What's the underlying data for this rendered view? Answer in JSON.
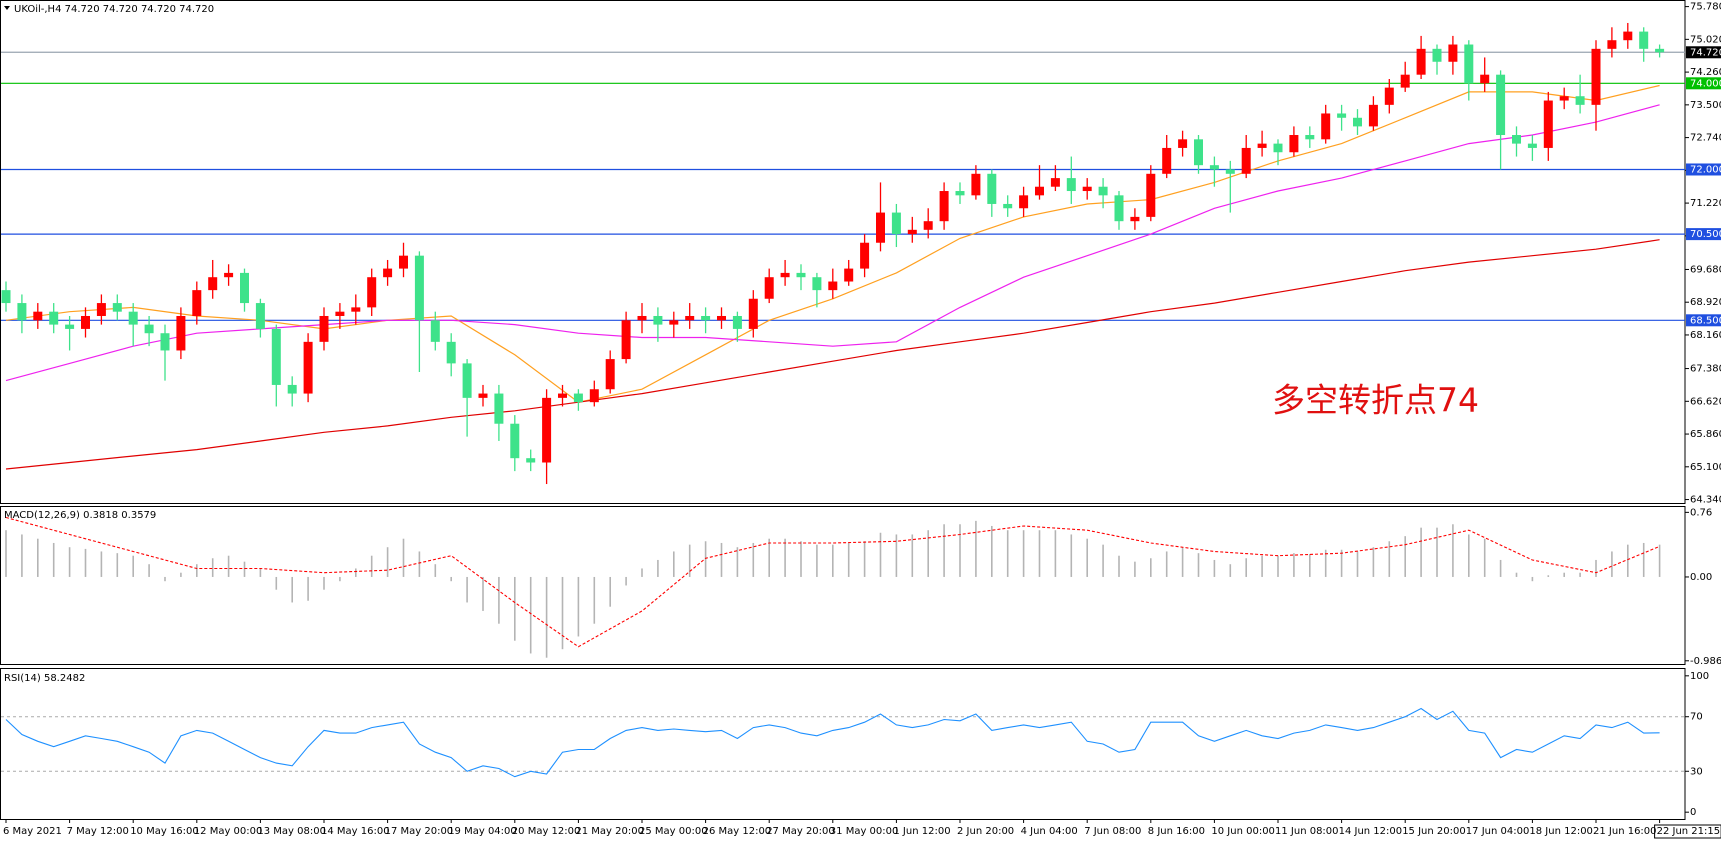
{
  "chart_data": [
    {
      "type": "candlestick",
      "title": "UKOil-,H4  74.720 74.720 74.720 74.720",
      "annotation": "多空转折点74",
      "categories": [
        "6 May 2021",
        null,
        null,
        null,
        "7 May 12:00",
        null,
        null,
        null,
        "10 May 16:00",
        null,
        null,
        null,
        "12 May 00:00",
        null,
        null,
        null,
        "13 May 08:00",
        null,
        null,
        null,
        "14 May 16:00",
        null,
        null,
        null,
        "17 May 20:00",
        null,
        null,
        null,
        "19 May 04:00",
        null,
        null,
        null,
        "20 May 12:00",
        null,
        null,
        null,
        "21 May 20:00",
        null,
        null,
        null,
        "25 May 00:00",
        null,
        null,
        null,
        "26 May 12:00",
        null,
        null,
        null,
        "27 May 20:00",
        null,
        null,
        null,
        "31 May 00:00",
        null,
        null,
        null,
        "1 Jun 12:00",
        null,
        null,
        null,
        "2 Jun 20:00",
        null,
        null,
        null,
        "4 Jun 04:00",
        null,
        null,
        null,
        "7 Jun 08:00",
        null,
        null,
        null,
        "8 Jun 16:00",
        null,
        null,
        null,
        "10 Jun 00:00",
        null,
        null,
        null,
        "11 Jun 08:00",
        null,
        null,
        null,
        "14 Jun 12:00",
        null,
        null,
        null,
        "15 Jun 20:00",
        null,
        null,
        null,
        "17 Jun 04:00",
        null,
        null,
        null,
        "18 Jun 12:00",
        null,
        null,
        null,
        "21 Jun 16:00",
        null,
        null,
        null,
        "22 Jun 21:15"
      ],
      "open": [
        69.2,
        68.9,
        68.5,
        68.7,
        68.4,
        68.3,
        68.6,
        68.9,
        68.7,
        68.4,
        68.2,
        67.8,
        68.6,
        69.2,
        69.5,
        69.6,
        68.9,
        68.3,
        67.0,
        66.8,
        68.0,
        68.6,
        68.7,
        68.8,
        69.5,
        69.7,
        70.0,
        68.5,
        68.0,
        67.5,
        66.7,
        66.8,
        66.1,
        65.3,
        65.2,
        66.7,
        66.8,
        66.6,
        66.9,
        67.6,
        68.5,
        68.6,
        68.4,
        68.5,
        68.6,
        68.5,
        68.6,
        68.3,
        69.0,
        69.5,
        69.6,
        69.5,
        69.2,
        69.4,
        69.7,
        70.3,
        71.0,
        70.5,
        70.6,
        70.8,
        71.5,
        71.4,
        71.9,
        71.2,
        71.1,
        71.4,
        71.6,
        71.8,
        71.5,
        71.6,
        71.4,
        70.8,
        70.9,
        71.9,
        72.5,
        72.7,
        72.1,
        72.0,
        71.9,
        72.5,
        72.6,
        72.4,
        72.8,
        72.7,
        73.3,
        73.2,
        73.0,
        73.5,
        73.9,
        74.2,
        74.8,
        74.5,
        74.9,
        74.0,
        74.2,
        72.8,
        72.6,
        72.5,
        73.6,
        73.7,
        73.5,
        74.8,
        75.0,
        75.2,
        74.8
      ],
      "close": [
        68.9,
        68.5,
        68.7,
        68.4,
        68.3,
        68.6,
        68.9,
        68.7,
        68.4,
        68.2,
        67.8,
        68.6,
        69.2,
        69.5,
        69.6,
        68.9,
        68.3,
        67.0,
        66.8,
        68.0,
        68.6,
        68.7,
        68.8,
        69.5,
        69.7,
        70.0,
        68.5,
        68.0,
        67.5,
        66.7,
        66.8,
        66.1,
        65.3,
        65.2,
        66.7,
        66.8,
        66.6,
        66.9,
        67.6,
        68.5,
        68.6,
        68.4,
        68.5,
        68.6,
        68.5,
        68.6,
        68.3,
        69.0,
        69.5,
        69.6,
        69.5,
        69.2,
        69.4,
        69.7,
        70.3,
        71.0,
        70.5,
        70.6,
        70.8,
        71.5,
        71.4,
        71.9,
        71.2,
        71.1,
        71.4,
        71.6,
        71.8,
        71.5,
        71.6,
        71.4,
        70.8,
        70.9,
        71.9,
        72.5,
        72.7,
        72.1,
        72.0,
        71.9,
        72.5,
        72.6,
        72.4,
        72.8,
        72.7,
        73.3,
        73.2,
        73.0,
        73.5,
        73.9,
        74.2,
        74.8,
        74.5,
        74.9,
        74.0,
        74.2,
        72.8,
        72.6,
        72.5,
        73.6,
        73.7,
        73.5,
        74.8,
        75.0,
        75.2,
        74.8,
        74.72
      ],
      "high": [
        69.4,
        69.1,
        68.9,
        68.9,
        68.6,
        68.8,
        69.1,
        69.1,
        68.9,
        68.6,
        68.4,
        68.8,
        69.4,
        69.9,
        69.8,
        69.7,
        69.0,
        68.4,
        67.2,
        68.2,
        68.8,
        68.9,
        69.1,
        69.7,
        69.9,
        70.3,
        70.1,
        68.7,
        68.2,
        67.6,
        67.0,
        67.0,
        66.3,
        65.5,
        66.9,
        67.0,
        66.9,
        67.1,
        67.8,
        68.7,
        68.9,
        68.8,
        68.7,
        68.9,
        68.8,
        68.8,
        68.7,
        69.2,
        69.7,
        69.9,
        69.8,
        69.6,
        69.7,
        69.9,
        70.5,
        71.7,
        71.2,
        70.9,
        71.1,
        71.7,
        71.7,
        72.1,
        72.0,
        71.4,
        71.6,
        72.1,
        72.1,
        72.3,
        71.8,
        71.8,
        71.5,
        71.1,
        72.1,
        72.8,
        72.9,
        72.8,
        72.3,
        72.2,
        72.8,
        72.9,
        72.7,
        73.0,
        73.0,
        73.5,
        73.5,
        73.4,
        73.7,
        74.1,
        74.5,
        75.1,
        74.9,
        75.1,
        75.0,
        74.6,
        74.3,
        73.0,
        72.8,
        73.8,
        73.9,
        74.2,
        75.0,
        75.3,
        75.4,
        75.3,
        74.9
      ],
      "low": [
        68.7,
        68.2,
        68.3,
        68.2,
        67.8,
        68.1,
        68.4,
        68.5,
        67.9,
        67.9,
        67.1,
        67.6,
        68.4,
        69.0,
        69.3,
        68.7,
        68.1,
        66.5,
        66.5,
        66.6,
        67.8,
        68.3,
        68.4,
        68.6,
        69.3,
        69.5,
        67.3,
        67.8,
        67.2,
        65.8,
        66.5,
        65.7,
        65.0,
        65.0,
        64.7,
        66.5,
        66.4,
        66.5,
        66.8,
        67.5,
        68.2,
        68.0,
        68.1,
        68.3,
        68.2,
        68.3,
        68.0,
        68.1,
        68.9,
        69.3,
        69.2,
        68.8,
        69.0,
        69.3,
        69.5,
        70.1,
        70.2,
        70.3,
        70.4,
        70.6,
        71.2,
        71.3,
        70.9,
        70.9,
        70.9,
        71.3,
        71.5,
        71.2,
        71.3,
        71.1,
        70.6,
        70.6,
        70.8,
        71.8,
        72.3,
        71.9,
        71.6,
        71.0,
        71.8,
        72.3,
        72.1,
        72.3,
        72.5,
        72.6,
        72.9,
        72.8,
        72.9,
        73.3,
        73.8,
        74.1,
        74.2,
        74.2,
        73.6,
        73.8,
        72.0,
        72.3,
        72.2,
        72.2,
        73.4,
        73.3,
        72.9,
        74.6,
        74.8,
        74.5,
        74.6
      ],
      "up_color": "#ff0000",
      "down_color": "#3ee28a",
      "ylim": [
        64.26,
        75.91
      ],
      "yticks": [
        {
          "value": 75.78,
          "label": "75.780"
        },
        {
          "value": 75.02,
          "label": "75.020"
        },
        {
          "value": 74.26,
          "label": "74.260"
        },
        {
          "value": 73.5,
          "label": "73.500"
        },
        {
          "value": 72.74,
          "label": "72.740"
        },
        {
          "value": 71.98,
          "label": "71.980"
        },
        {
          "value": 71.22,
          "label": "71.220"
        },
        {
          "value": 70.46,
          "label": "70.460"
        },
        {
          "value": 69.68,
          "label": "69.680"
        },
        {
          "value": 68.92,
          "label": "68.920"
        },
        {
          "value": 68.16,
          "label": "68.160"
        },
        {
          "value": 67.38,
          "label": "67.380"
        },
        {
          "value": 66.62,
          "label": "66.620"
        },
        {
          "value": 65.86,
          "label": "65.860"
        },
        {
          "value": 65.1,
          "label": "65.100"
        },
        {
          "value": 64.34,
          "label": "64.340"
        }
      ],
      "levels": [
        {
          "value": 74.72,
          "label": "74.720",
          "color": "#9aa4b0",
          "box": "#000000"
        },
        {
          "value": 74.0,
          "label": "74.000",
          "color": "#00c000",
          "box": "#00c000"
        },
        {
          "value": 72.0,
          "label": "72.000",
          "color": "#1f4fe0",
          "box": "#1f4fe0"
        },
        {
          "value": 70.5,
          "label": "70.500",
          "color": "#1f4fe0",
          "box": "#1f4fe0"
        },
        {
          "value": 68.5,
          "label": "68.500",
          "color": "#1f4fe0",
          "box": "#1f4fe0"
        }
      ],
      "overlays": [
        {
          "color": "#ffa020",
          "x": [
            0,
            4,
            8,
            12,
            16,
            20,
            24,
            28,
            32,
            36,
            40,
            44,
            48,
            52,
            56,
            60,
            64,
            68,
            72,
            76,
            80,
            84,
            88,
            92,
            96,
            100,
            104
          ],
          "values": [
            68.5,
            68.7,
            68.8,
            68.6,
            68.5,
            68.3,
            68.5,
            68.6,
            67.7,
            66.6,
            66.9,
            67.7,
            68.5,
            69.0,
            69.6,
            70.4,
            70.9,
            71.2,
            71.3,
            71.7,
            72.2,
            72.6,
            73.2,
            73.8,
            73.8,
            73.6,
            73.95
          ]
        },
        {
          "color": "#ee22ee",
          "x": [
            0,
            4,
            8,
            12,
            16,
            20,
            24,
            28,
            32,
            36,
            40,
            44,
            48,
            52,
            56,
            60,
            64,
            68,
            72,
            76,
            80,
            84,
            88,
            92,
            96,
            100,
            104
          ],
          "values": [
            67.1,
            67.5,
            67.9,
            68.2,
            68.3,
            68.4,
            68.5,
            68.5,
            68.4,
            68.2,
            68.1,
            68.1,
            68.0,
            67.9,
            68.0,
            68.8,
            69.5,
            70.0,
            70.5,
            71.1,
            71.5,
            71.8,
            72.2,
            72.6,
            72.8,
            73.1,
            73.5
          ]
        },
        {
          "color": "#e00000",
          "x": [
            0,
            4,
            8,
            12,
            16,
            20,
            24,
            28,
            32,
            36,
            40,
            44,
            48,
            52,
            56,
            60,
            64,
            68,
            72,
            76,
            80,
            84,
            88,
            92,
            96,
            100,
            104
          ],
          "values": [
            65.05,
            65.2,
            65.35,
            65.5,
            65.7,
            65.9,
            66.05,
            66.25,
            66.4,
            66.6,
            66.8,
            67.05,
            67.3,
            67.55,
            67.8,
            68.0,
            68.2,
            68.45,
            68.7,
            68.9,
            69.15,
            69.4,
            69.65,
            69.85,
            70.0,
            70.15,
            70.37
          ]
        }
      ]
    },
    {
      "type": "macd",
      "title": "MACD(12,26,9) 0.3818 0.3579",
      "values": [
        0.55,
        0.5,
        0.45,
        0.4,
        0.35,
        0.33,
        0.3,
        0.28,
        0.25,
        0.15,
        -0.05,
        0.05,
        0.15,
        0.22,
        0.25,
        0.18,
        0.1,
        -0.15,
        -0.3,
        -0.28,
        -0.15,
        -0.05,
        0.1,
        0.25,
        0.35,
        0.45,
        0.3,
        0.15,
        -0.05,
        -0.3,
        -0.4,
        -0.55,
        -0.75,
        -0.9,
        -0.95,
        -0.85,
        -0.7,
        -0.55,
        -0.35,
        -0.1,
        0.1,
        0.2,
        0.3,
        0.38,
        0.42,
        0.4,
        0.35,
        0.4,
        0.45,
        0.45,
        0.42,
        0.38,
        0.38,
        0.4,
        0.42,
        0.52,
        0.5,
        0.5,
        0.55,
        0.62,
        0.62,
        0.66,
        0.6,
        0.55,
        0.55,
        0.55,
        0.55,
        0.5,
        0.45,
        0.38,
        0.25,
        0.18,
        0.22,
        0.3,
        0.35,
        0.28,
        0.2,
        0.15,
        0.22,
        0.25,
        0.25,
        0.28,
        0.27,
        0.32,
        0.32,
        0.3,
        0.35,
        0.42,
        0.48,
        0.58,
        0.58,
        0.62,
        0.5,
        0.45,
        0.2,
        0.05,
        -0.05,
        0.02,
        0.05,
        0.05,
        0.2,
        0.3,
        0.38,
        0.4,
        0.38
      ],
      "color": "#b4b4b4",
      "signal": {
        "color": "#ff0000",
        "x": [
          0,
          4,
          8,
          12,
          16,
          20,
          24,
          28,
          32,
          36,
          40,
          44,
          48,
          52,
          56,
          60,
          64,
          68,
          72,
          76,
          80,
          84,
          88,
          92,
          96,
          100,
          104
        ],
        "values": [
          0.7,
          0.5,
          0.3,
          0.1,
          0.1,
          0.05,
          0.08,
          0.25,
          -0.3,
          -0.82,
          -0.4,
          0.22,
          0.4,
          0.4,
          0.42,
          0.5,
          0.6,
          0.55,
          0.4,
          0.3,
          0.25,
          0.28,
          0.38,
          0.55,
          0.2,
          0.05,
          0.36
        ]
      },
      "ylim": [
        -1.024,
        0.823
      ],
      "yticks": [
        0.76,
        {
          "value": 0,
          "label": "0.00"
        },
        -0.9862
      ]
    },
    {
      "type": "rsi",
      "title": "RSI(14) 58.2482",
      "values": [
        68,
        57,
        52,
        48,
        52,
        56,
        54,
        52,
        48,
        44,
        36,
        56,
        60,
        58,
        52,
        46,
        40,
        36,
        34,
        48,
        60,
        58,
        58,
        62,
        64,
        66,
        50,
        44,
        40,
        30,
        34,
        32,
        26,
        30,
        28,
        44,
        46,
        46,
        54,
        60,
        62,
        60,
        61,
        60,
        59,
        60,
        54,
        62,
        64,
        62,
        58,
        56,
        60,
        62,
        66,
        72,
        64,
        62,
        64,
        68,
        67,
        72,
        60,
        62,
        64,
        62,
        64,
        66,
        52,
        50,
        44,
        46,
        66,
        66,
        66,
        56,
        52,
        56,
        60,
        56,
        54,
        58,
        60,
        64,
        62,
        60,
        62,
        66,
        70,
        76,
        68,
        74,
        60,
        58,
        40,
        46,
        44,
        50,
        56,
        54,
        64,
        62,
        66,
        58,
        58.25
      ],
      "color": "#1e90ff",
      "ylim": [
        -5,
        105
      ],
      "yticks": [
        0,
        30,
        70,
        100
      ],
      "levels": [
        30,
        70
      ]
    }
  ]
}
